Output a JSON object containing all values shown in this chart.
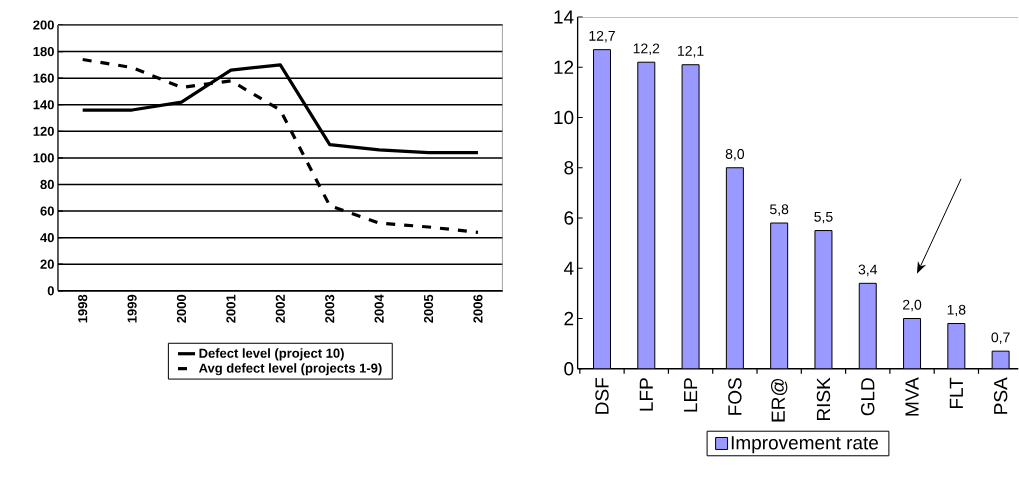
{
  "chart_data": [
    {
      "type": "line",
      "categories": [
        "1998",
        "1999",
        "2000",
        "2001",
        "2002",
        "2003",
        "2004",
        "2005",
        "2006"
      ],
      "series": [
        {
          "name": "Defect level (project 10)",
          "color": "#000000",
          "line_style": "solid",
          "values": [
            136,
            136,
            142,
            166,
            170,
            110,
            106,
            104,
            104
          ]
        },
        {
          "name": "Avg defect level (projects 1-9)",
          "color": "#000000",
          "line_style": "dashed",
          "values": [
            174,
            168,
            153,
            158,
            136,
            64,
            51,
            48,
            44
          ]
        }
      ],
      "ylim": [
        0,
        200
      ],
      "yticks": [
        0,
        20,
        40,
        60,
        80,
        100,
        120,
        140,
        160,
        180,
        200
      ],
      "grid": "y",
      "legend": "bottom"
    },
    {
      "type": "bar",
      "categories": [
        "DSF",
        "LFP",
        "LEP",
        "FOS",
        "ER@",
        "RISK",
        "GLD",
        "MVA",
        "FLT",
        "PSA"
      ],
      "series": [
        {
          "name": "Improvement rate",
          "color": "#9999ff",
          "values": [
            12.7,
            12.2,
            12.1,
            8.0,
            5.8,
            5.5,
            3.4,
            2.0,
            1.8,
            0.7
          ],
          "value_labels": [
            "12,7",
            "12,2",
            "12,1",
            "8,0",
            "5,8",
            "5,5",
            "3,4",
            "2,0",
            "1,8",
            "0,7"
          ]
        }
      ],
      "ylim": [
        0,
        14
      ],
      "yticks": [
        0,
        2,
        4,
        6,
        8,
        10,
        12,
        14
      ],
      "legend": "bottom"
    }
  ]
}
